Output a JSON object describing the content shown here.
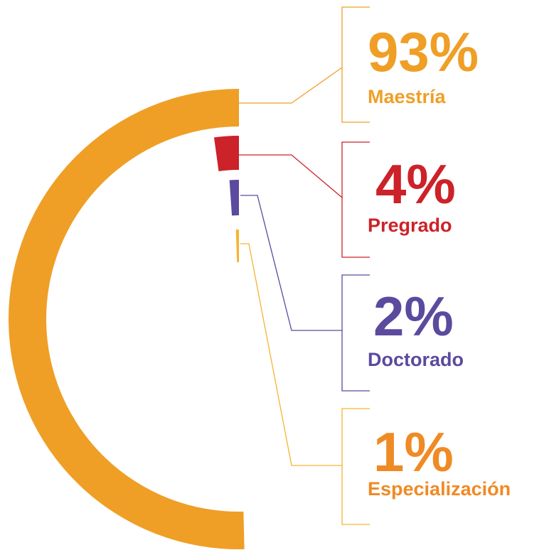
{
  "chart_data": {
    "type": "radial_bar",
    "categories": [
      "Maestría",
      "Pregrado",
      "Doctorado",
      "Especialización"
    ],
    "values": [
      93,
      4,
      2,
      1
    ],
    "value_labels": [
      "93%",
      "4%",
      "2%",
      "1%"
    ],
    "colors": [
      "#ef9f26",
      "#cc2229",
      "#5b4a9e",
      "#f6b330"
    ],
    "label_colors": [
      "#ef9f26",
      "#cc2229",
      "#5b4a9e",
      "#f08a24"
    ]
  }
}
